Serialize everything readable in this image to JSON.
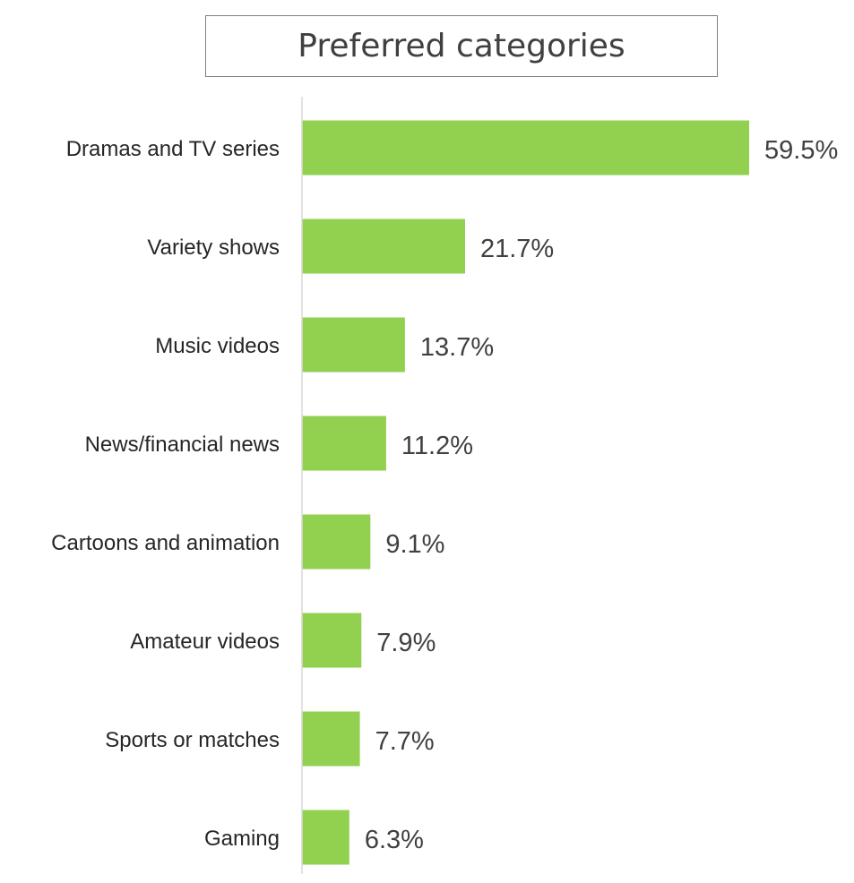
{
  "chart_data": {
    "type": "bar",
    "orientation": "horizontal",
    "title": "Preferred categories",
    "categories": [
      "Dramas and TV series",
      "Variety shows",
      "Music videos",
      "News/financial news",
      "Cartoons and animation",
      "Amateur videos",
      "Sports or matches",
      "Gaming"
    ],
    "values": [
      59.5,
      21.7,
      13.7,
      11.2,
      9.1,
      7.9,
      7.7,
      6.3
    ],
    "value_labels": [
      "59.5%",
      "21.7%",
      "13.7%",
      "11.2%",
      "9.1%",
      "7.9%",
      "7.7%",
      "6.3%"
    ],
    "xlim": [
      0,
      59.5
    ],
    "grid": false,
    "legend": "none",
    "colors": {
      "bar": "#92d050",
      "axis": "#d9d9d9",
      "label_text": "#262626",
      "value_text": "#404040",
      "title_border": "#7f7f7f"
    }
  }
}
